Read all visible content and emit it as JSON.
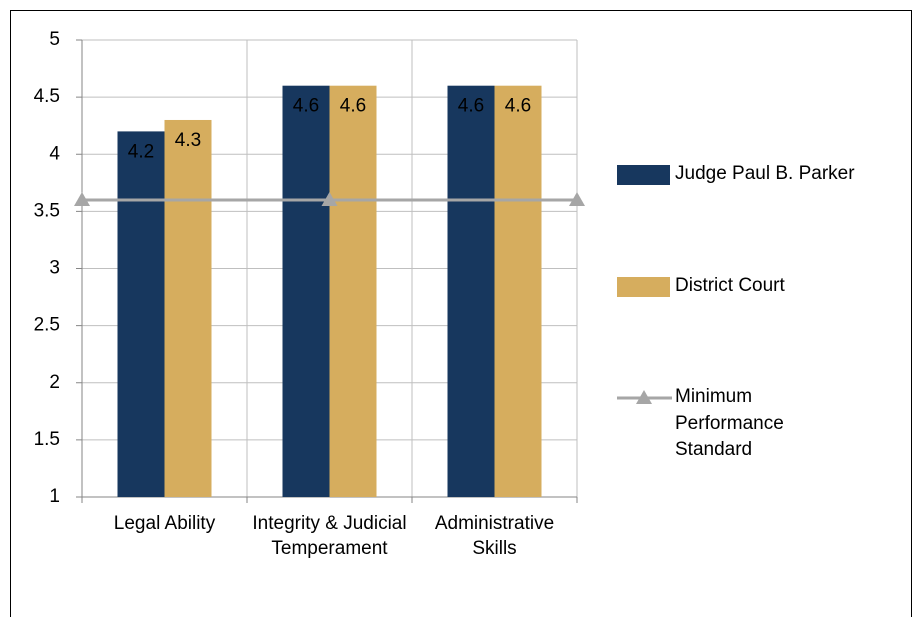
{
  "chart_data": {
    "type": "bar",
    "categories": [
      "Legal Ability",
      "Integrity & Judicial Temperament",
      "Administrative Skills"
    ],
    "series": [
      {
        "name": "Judge Paul B. Parker",
        "color": "#17375e",
        "values": [
          4.2,
          4.6,
          4.6
        ]
      },
      {
        "name": "District Court",
        "color": "#d6ad5e",
        "values": [
          4.3,
          4.6,
          4.6
        ]
      },
      {
        "name": "Minimum Performance Standard",
        "type": "line",
        "color": "#a6a6a6",
        "values": [
          3.6,
          3.6,
          3.6
        ]
      }
    ],
    "ylim": [
      1,
      5
    ],
    "yticks": [
      1,
      1.5,
      2,
      2.5,
      3,
      3.5,
      4,
      4.5,
      5
    ],
    "grid": true,
    "legend": "right"
  }
}
